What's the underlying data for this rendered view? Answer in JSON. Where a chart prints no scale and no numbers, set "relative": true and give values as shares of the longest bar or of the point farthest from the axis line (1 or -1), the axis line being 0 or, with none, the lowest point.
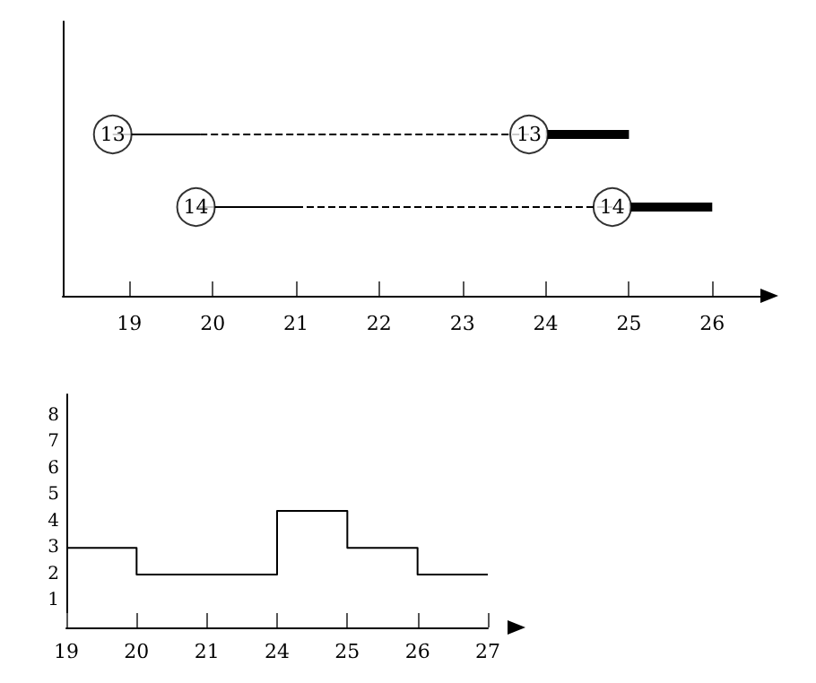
{
  "chart_data": [
    {
      "type": "line",
      "relative": true,
      "xlim": [
        18.2,
        26.6
      ],
      "xticks": [
        19,
        20,
        21,
        22,
        23,
        24,
        25,
        26
      ],
      "series": [
        {
          "type": "line",
          "color": "#000000",
          "line_style": "solid",
          "marker": "none",
          "x": [
            18.8,
            19.85
          ],
          "values": [
            1,
            1
          ]
        },
        {
          "type": "line",
          "color": "#000000",
          "line_style": "solid",
          "marker": "none",
          "x": [
            19.8,
            21
          ],
          "values": [
            0.55,
            0.55
          ]
        },
        {
          "type": "line",
          "color": "#000000",
          "line_style": "dashed",
          "marker": "none",
          "x": [
            19.85,
            23.8
          ],
          "values": [
            1,
            1
          ]
        },
        {
          "type": "line",
          "color": "#000000",
          "line_style": "dashed",
          "marker": "none",
          "x": [
            21,
            24.8
          ],
          "values": [
            0.55,
            0.55
          ]
        },
        {
          "type": "line",
          "color": "#000000",
          "line_style": "solid",
          "marker": "none",
          "x": [
            24,
            25
          ],
          "values": [
            1,
            1
          ]
        },
        {
          "type": "line",
          "color": "#000000",
          "line_style": "solid",
          "marker": "none",
          "x": [
            25,
            26
          ],
          "values": [
            0.55,
            0.55
          ]
        },
        {
          "type": "scatter",
          "color": "#000000",
          "marker": "circle",
          "x": [
            18.8,
            23.8,
            19.8,
            24.8
          ],
          "values": [
            1,
            1,
            0.55,
            0.55
          ]
        }
      ],
      "annotations": [
        {
          "text": "13",
          "x": 18.8,
          "y": 1
        },
        {
          "text": "13",
          "x": 23.8,
          "y": 1
        },
        {
          "text": "14",
          "x": 19.8,
          "y": 0.55
        },
        {
          "text": "14",
          "x": 24.8,
          "y": 0.55
        }
      ]
    },
    {
      "type": "step",
      "categories": [
        "19",
        "20",
        "21",
        "24",
        "25",
        "26",
        "27"
      ],
      "values": [
        3,
        2,
        2,
        4.4,
        3,
        2,
        2
      ],
      "color": "#000000",
      "ylim": [
        0,
        8.8
      ],
      "yticks": [
        1,
        2,
        3,
        4,
        5,
        6,
        7,
        8
      ]
    }
  ]
}
